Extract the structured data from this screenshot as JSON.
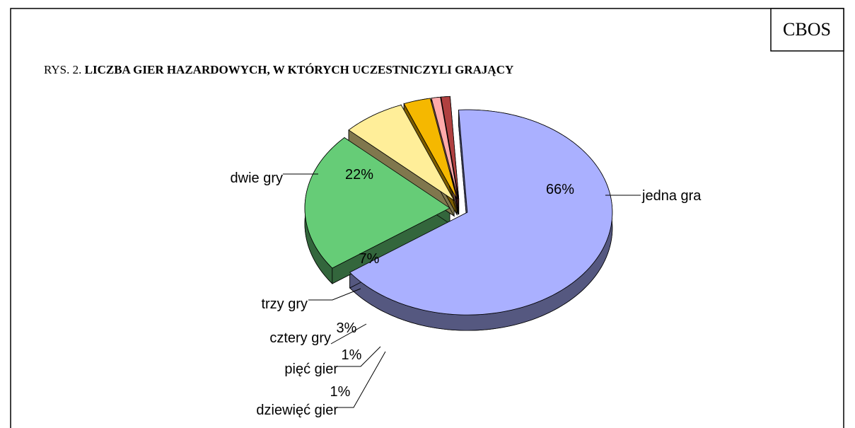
{
  "chart_data": {
    "type": "pie",
    "source": "CBOS",
    "title_prefix": "RYS. 2.",
    "title": "LICZBA GIER HAZARDOWYCH, W KTÓRYCH UCZESTNICZYLI GRAJĄCY",
    "categories": [
      "jedna gra",
      "dwie gry",
      "trzy gry",
      "cztery gry",
      "pięć gier",
      "dziewięć gier"
    ],
    "values": [
      66,
      22,
      7,
      3,
      1,
      1
    ],
    "value_labels": [
      "66%",
      "22%",
      "7%",
      "3%",
      "1%",
      "1%"
    ],
    "colors": [
      "#aab0ff",
      "#66cc77",
      "#ffee99",
      "#f5b800",
      "#ffaaaa",
      "#b04040"
    ]
  }
}
